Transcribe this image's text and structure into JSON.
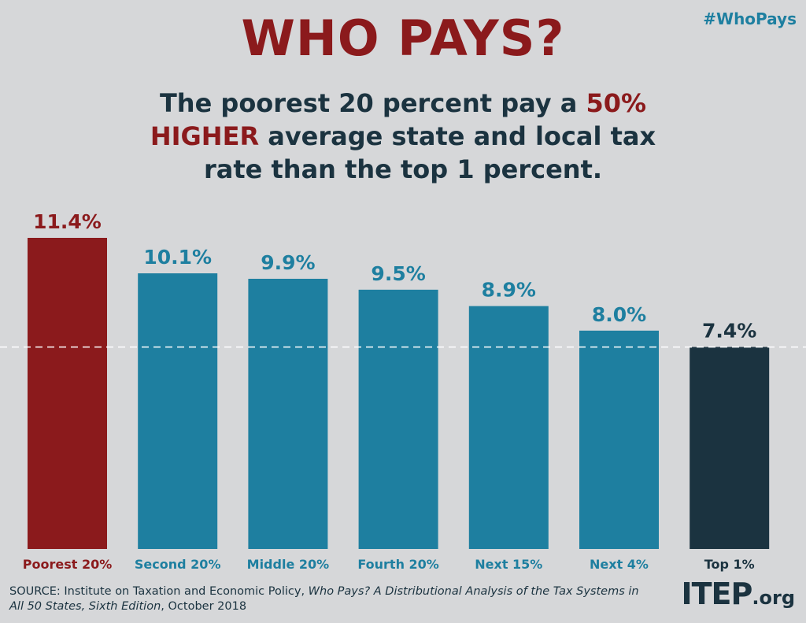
{
  "header": {
    "title": "WHO PAYS?",
    "hashtag": "#WhoPays"
  },
  "subtitle": {
    "part1": "The poorest 20 percent pay a ",
    "highlight1": "50%",
    "highlight2": "HIGHER",
    "part2": " average state and local tax rate than the top 1 percent."
  },
  "colors": {
    "highlight_red": "#8b1a1c",
    "teal": "#1e7fa0",
    "dark_navy": "#1b3340",
    "background": "#d6d7d9"
  },
  "chart_data": {
    "type": "bar",
    "title": "WHO PAYS?",
    "categories": [
      "Poorest 20%",
      "Second 20%",
      "Middle 20%",
      "Fourth 20%",
      "Next 15%",
      "Next 4%",
      "Top 1%"
    ],
    "values": [
      11.4,
      10.1,
      9.9,
      9.5,
      8.9,
      8.0,
      7.4
    ],
    "value_labels": [
      "11.4%",
      "10.1%",
      "9.9%",
      "9.5%",
      "8.9%",
      "8.0%",
      "7.4%"
    ],
    "bar_colors": [
      "#8b1a1c",
      "#1e7fa0",
      "#1e7fa0",
      "#1e7fa0",
      "#1e7fa0",
      "#1e7fa0",
      "#1b3340"
    ],
    "reference_line": 7.4,
    "ylim": [
      0,
      11.4
    ],
    "xlabel": "",
    "ylabel": "",
    "grid": false,
    "legend": "none"
  },
  "source": {
    "prefix": "SOURCE: Institute on Taxation and Economic Policy, ",
    "title": "Who Pays? A Distributional Analysis of the Tax Systems in All 50 States, Sixth Edition",
    "suffix": ", October 2018"
  },
  "logo": {
    "big": "ITEP",
    "small": ".org"
  }
}
